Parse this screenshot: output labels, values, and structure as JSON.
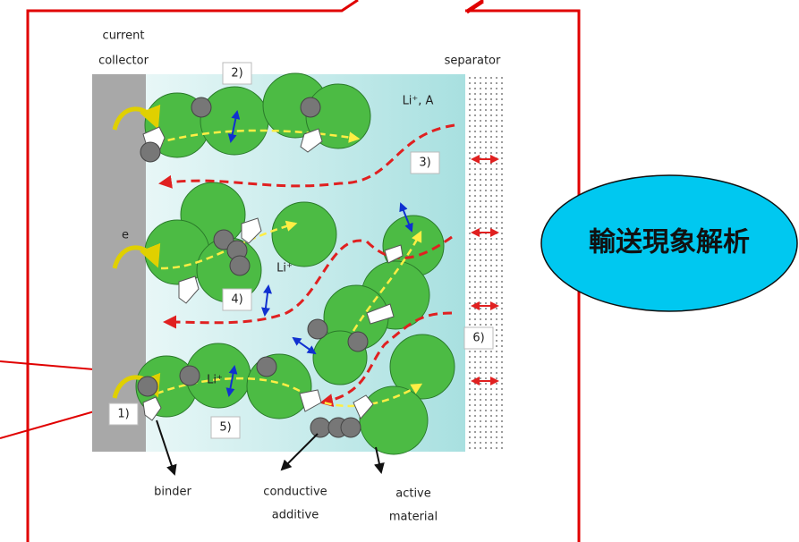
{
  "labels": {
    "current_collector": [
      "current",
      "collector"
    ],
    "separator": "separator",
    "li_a": "Li⁺, A",
    "electron": "e",
    "li_1": "Li⁺",
    "li_2": "Li⁺",
    "binder": "binder",
    "conductive_additive": [
      "conductive",
      "additive"
    ],
    "active_material": [
      "active",
      "material"
    ]
  },
  "steps": [
    "1)",
    "2)",
    "3)",
    "4)",
    "5)",
    "6)"
  ],
  "callout": "輸送現象解析"
}
